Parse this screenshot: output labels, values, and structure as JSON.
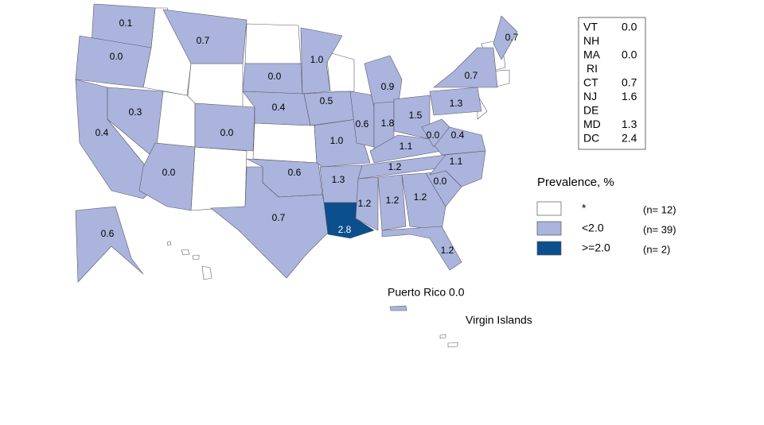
{
  "states": [
    {
      "label": "0.1",
      "color": "#aab4dc"
    },
    {
      "label": "0.0",
      "color": "#aab4dc"
    },
    {
      "label": "0.4",
      "color": "#aab4dc"
    },
    {
      "label": "0.3",
      "color": "#aab4dc"
    },
    {
      "label": "0.7",
      "color": "#aab4dc"
    },
    {
      "label": "0.0",
      "color": "#aab4dc"
    },
    {
      "label": "0.0",
      "color": "#aab4dc"
    },
    {
      "label": "0.0",
      "color": "#aab4dc"
    },
    {
      "label": "0.4",
      "color": "#aab4dc"
    },
    {
      "label": "0.6",
      "color": "#aab4dc"
    },
    {
      "label": "0.7",
      "color": "#aab4dc"
    },
    {
      "label": "1.0",
      "color": "#aab4dc"
    },
    {
      "label": "0.5",
      "color": "#aab4dc"
    },
    {
      "label": "1.0",
      "color": "#aab4dc"
    },
    {
      "label": "1.3",
      "color": "#aab4dc"
    },
    {
      "label": "2.8",
      "color": "#0b4f8c"
    },
    {
      "label": "0.6",
      "color": "#aab4dc"
    },
    {
      "label": "0.9",
      "color": "#aab4dc"
    },
    {
      "label": "1.8",
      "color": "#aab4dc"
    },
    {
      "label": "1.5",
      "color": "#aab4dc"
    },
    {
      "label": "1.1",
      "color": "#aab4dc"
    },
    {
      "label": "1.2",
      "color": "#aab4dc"
    },
    {
      "label": "1.2",
      "color": "#aab4dc"
    },
    {
      "label": "1.2",
      "color": "#aab4dc"
    },
    {
      "label": "1.2",
      "color": "#aab4dc"
    },
    {
      "label": "1.2",
      "color": "#aab4dc"
    },
    {
      "label": "0.0",
      "color": "#aab4dc"
    },
    {
      "label": "1.1",
      "color": "#aab4dc"
    },
    {
      "label": "0.4",
      "color": "#aab4dc"
    },
    {
      "label": "0.0",
      "color": "#aab4dc"
    },
    {
      "label": "1.3",
      "color": "#aab4dc"
    },
    {
      "label": "0.7",
      "color": "#aab4dc"
    },
    {
      "label": "0.7",
      "color": "#aab4dc"
    },
    {
      "label": "0.6",
      "color": "#aab4dc"
    }
  ],
  "small_states": [
    {
      "state": "VT",
      "value": "0.0"
    },
    {
      "state": "NH",
      "value": null
    },
    {
      "state": "MA",
      "value": "0.0"
    },
    {
      "state": "RI",
      "value": null
    },
    {
      "state": "CT",
      "value": "0.7"
    },
    {
      "state": "NJ",
      "value": "1.6"
    },
    {
      "state": "DE",
      "value": null
    },
    {
      "state": "MD",
      "value": "1.3"
    },
    {
      "state": "DC",
      "value": "2.4"
    }
  ],
  "legend": {
    "title": "Prevalence, %",
    "items": [
      {
        "label": "*",
        "count": "(n= 12)",
        "color": "#ffffff"
      },
      {
        "label": "<2.0",
        "count": "(n= 39)",
        "color": "#aab4dc"
      },
      {
        "label": ">=2.0",
        "count": "(n=  2)",
        "color": "#0b4f8c"
      }
    ]
  },
  "territories": [
    "Puerto Rico 0.0",
    "Virgin Islands"
  ]
}
